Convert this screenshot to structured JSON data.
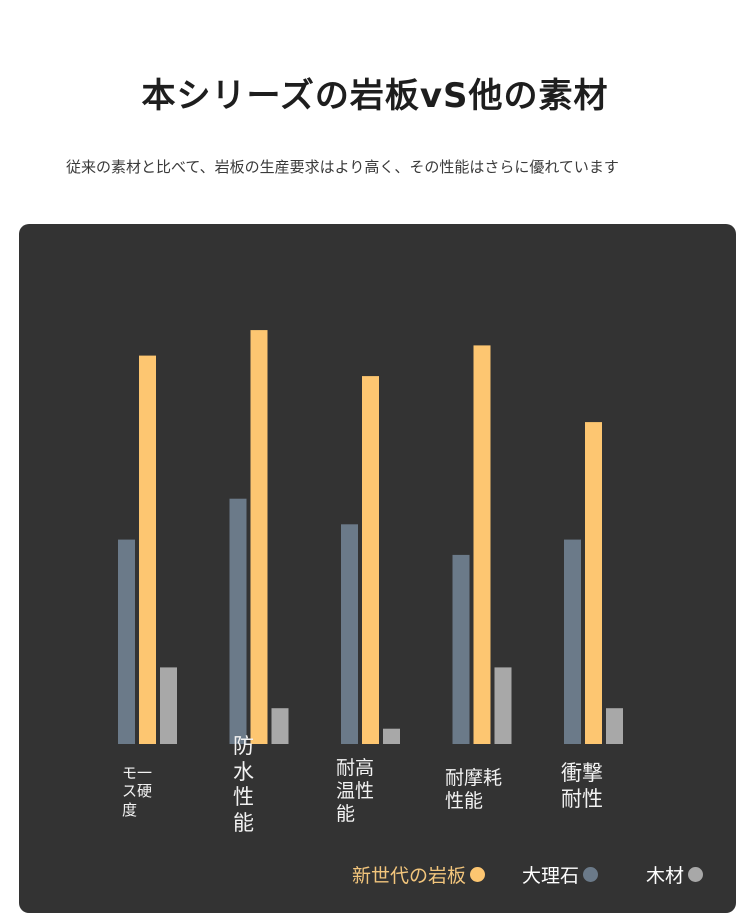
{
  "header": {
    "title": "本シリーズの岩板vS他の素材",
    "subtitle": "従来の素材と比べて、岩板の生産要求はより高く、その性能はさらに優れています"
  },
  "chart_data": {
    "type": "bar",
    "categories": [
      "モース硬度",
      "防水性能",
      "耐高温性能",
      "耐摩耗性能",
      "衝撃耐性"
    ],
    "category_label_lines": [
      [
        "モ一",
        "ス硬",
        "度"
      ],
      [
        "防",
        "水",
        "性",
        "能"
      ],
      [
        "耐高",
        "温性",
        "能"
      ],
      [
        "耐摩耗",
        "性能"
      ],
      [
        "衝撃",
        "耐性"
      ]
    ],
    "series": [
      {
        "name": "大理石",
        "color": "#6b7a89",
        "values": [
          40,
          48,
          43,
          37,
          40
        ]
      },
      {
        "name": "新世代の岩板",
        "color": "#fdc671",
        "values": [
          76,
          81,
          72,
          78,
          63
        ]
      },
      {
        "name": "木材",
        "color": "#a8a8a8",
        "values": [
          15,
          7,
          3,
          15,
          7
        ]
      }
    ],
    "ylim": [
      0,
      100
    ],
    "grid": false,
    "legend": {
      "position": "bottom-right",
      "items": [
        {
          "label": "新世代の岩板",
          "color": "#fdc671",
          "text_color": "#f2c57c"
        },
        {
          "label": "大理石",
          "color": "#6b7a89",
          "text_color": "#ffffff"
        },
        {
          "label": "木材",
          "color": "#a8a8a8",
          "text_color": "#ffffff"
        }
      ]
    }
  }
}
